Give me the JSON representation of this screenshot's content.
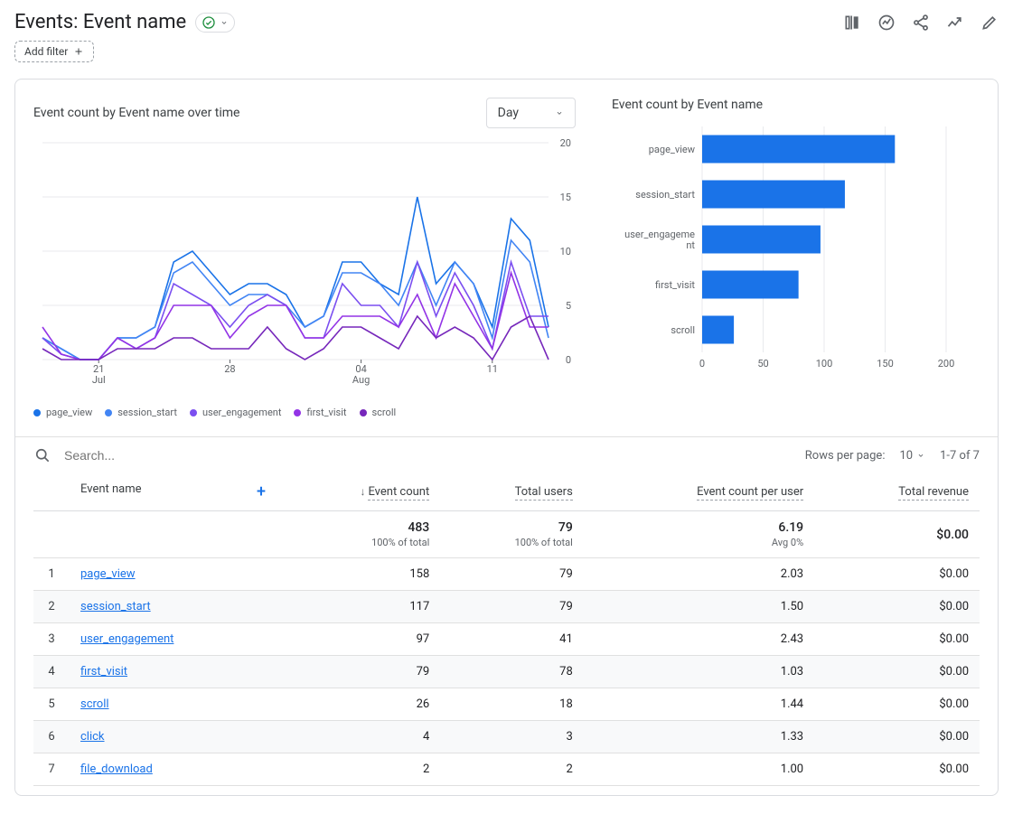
{
  "header": {
    "title": "Events: Event name",
    "status_ok": true,
    "add_filter_label": "Add filter"
  },
  "line_chart": {
    "title": "Event count by Event name over time",
    "granularity_selected": "Day",
    "type": "line",
    "background_color": "#ffffff",
    "grid_color": "#e8eaed",
    "axis_text_color": "#5f6368",
    "ylim": [
      0,
      20
    ],
    "ytick_step": 5,
    "yticks": [
      0,
      5,
      10,
      15,
      20
    ],
    "x_labels": [
      {
        "pos": 3,
        "top": "21",
        "bottom": "Jul"
      },
      {
        "pos": 10,
        "top": "28",
        "bottom": ""
      },
      {
        "pos": 17,
        "top": "04",
        "bottom": "Aug"
      },
      {
        "pos": 24,
        "top": "11",
        "bottom": ""
      }
    ],
    "n_points": 28,
    "series": [
      {
        "name": "page_view",
        "color": "#1a73e8",
        "values": [
          2,
          1,
          0,
          0,
          2,
          2,
          3,
          9,
          10,
          8,
          6,
          7,
          7,
          6,
          3,
          4,
          9,
          9,
          7,
          6,
          15,
          7,
          9,
          7,
          3,
          13,
          11,
          3
        ]
      },
      {
        "name": "session_start",
        "color": "#4285f4",
        "values": [
          2,
          1,
          0,
          0,
          2,
          2,
          3,
          8,
          9,
          7,
          5,
          6,
          6,
          5,
          3,
          4,
          8,
          8,
          7,
          5,
          9,
          5,
          9,
          7,
          2,
          11,
          9,
          2
        ]
      },
      {
        "name": "user_engagement",
        "color": "#7b4ff0",
        "values": [
          2,
          0.5,
          0,
          0,
          2,
          1,
          2,
          7,
          6,
          5,
          3,
          5,
          6,
          5,
          2,
          2,
          7,
          5,
          5,
          3,
          9,
          4,
          8,
          5,
          1,
          9,
          4,
          4
        ]
      },
      {
        "name": "first_visit",
        "color": "#9334e6",
        "values": [
          3,
          0.5,
          0,
          0,
          2,
          1,
          2,
          5,
          5,
          5,
          2,
          4,
          5,
          5,
          2,
          2,
          4,
          4,
          4,
          3,
          6,
          2,
          7,
          4,
          1,
          8,
          3,
          3
        ]
      },
      {
        "name": "scroll",
        "color": "#7627bb",
        "values": [
          1,
          0,
          0,
          0,
          1,
          1,
          1,
          2,
          2,
          1,
          1,
          1,
          3,
          1,
          0,
          1,
          3,
          3,
          2,
          1,
          4,
          2,
          3,
          2,
          0,
          3,
          4,
          0
        ]
      }
    ]
  },
  "bar_chart": {
    "title": "Event count by Event name",
    "type": "bar-horizontal",
    "bar_color": "#1a73e8",
    "grid_color": "#e8eaed",
    "axis_text_color": "#5f6368",
    "xlim": [
      0,
      200
    ],
    "xtick_step": 50,
    "xticks": [
      0,
      50,
      100,
      150,
      200
    ],
    "categories": [
      "page_view",
      "session_start",
      "user_engagement",
      "first_visit",
      "scroll"
    ],
    "category_labels": [
      "page_view",
      "session_start",
      "user_engagement",
      "first_visit",
      "scroll"
    ],
    "values": [
      158,
      117,
      97,
      79,
      26
    ]
  },
  "table": {
    "search_placeholder": "Search...",
    "rows_per_page_label": "Rows per page:",
    "rows_per_page_value": "10",
    "page_range": "1-7 of 7",
    "columns": {
      "event_name": "Event name",
      "event_count": "Event count",
      "total_users": "Total users",
      "event_count_per_user": "Event count per user",
      "total_revenue": "Total revenue"
    },
    "totals": {
      "event_count": "483",
      "event_count_sub": "100% of total",
      "total_users": "79",
      "total_users_sub": "100% of total",
      "per_user": "6.19",
      "per_user_sub": "Avg 0%",
      "revenue": "$0.00"
    },
    "rows": [
      {
        "idx": "1",
        "name": "page_view",
        "count": "158",
        "users": "79",
        "per_user": "2.03",
        "revenue": "$0.00"
      },
      {
        "idx": "2",
        "name": "session_start",
        "count": "117",
        "users": "79",
        "per_user": "1.50",
        "revenue": "$0.00"
      },
      {
        "idx": "3",
        "name": "user_engagement",
        "count": "97",
        "users": "41",
        "per_user": "2.43",
        "revenue": "$0.00"
      },
      {
        "idx": "4",
        "name": "first_visit",
        "count": "79",
        "users": "78",
        "per_user": "1.03",
        "revenue": "$0.00"
      },
      {
        "idx": "5",
        "name": "scroll",
        "count": "26",
        "users": "18",
        "per_user": "1.44",
        "revenue": "$0.00"
      },
      {
        "idx": "6",
        "name": "click",
        "count": "4",
        "users": "3",
        "per_user": "1.33",
        "revenue": "$0.00"
      },
      {
        "idx": "7",
        "name": "file_download",
        "count": "2",
        "users": "2",
        "per_user": "1.00",
        "revenue": "$0.00"
      }
    ]
  }
}
